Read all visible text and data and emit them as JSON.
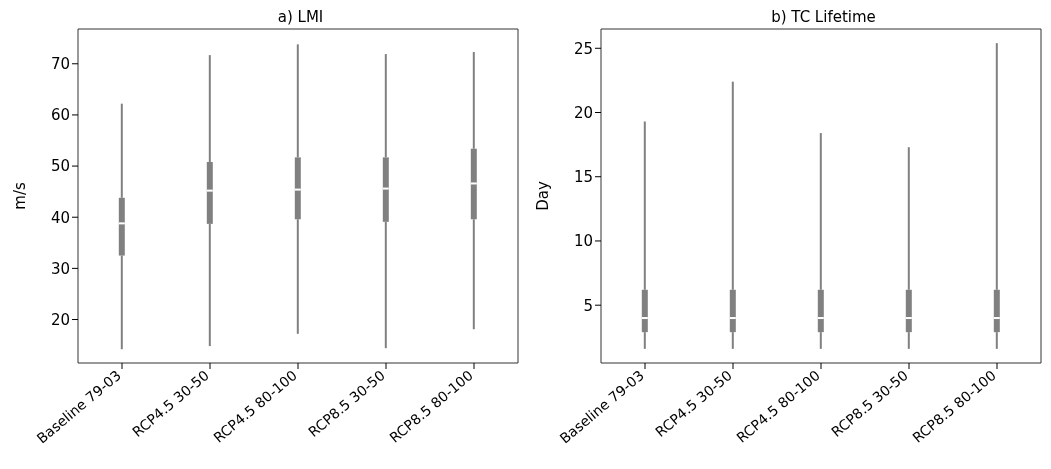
{
  "chart_data": [
    {
      "type": "box",
      "title": "a) LMI",
      "ylabel": "m/s",
      "categories": [
        "Baseline 79-03",
        "RCP4.5 30-50",
        "RCP4.5 80-100",
        "RCP8.5 30-50",
        "RCP8.5 80-100"
      ],
      "color": "#808080",
      "ylim": [
        11.5,
        76.8
      ],
      "yticks": [
        20,
        30,
        40,
        50,
        60,
        70
      ],
      "grid": false,
      "legend": false,
      "boxes": [
        {
          "low": 14.2,
          "q1": 32.5,
          "median": 38.8,
          "q3": 43.8,
          "high": 62.2
        },
        {
          "low": 14.8,
          "q1": 38.7,
          "median": 45.2,
          "q3": 50.8,
          "high": 71.7
        },
        {
          "low": 17.2,
          "q1": 39.6,
          "median": 45.4,
          "q3": 51.7,
          "high": 73.8
        },
        {
          "low": 14.4,
          "q1": 39.1,
          "median": 45.6,
          "q3": 51.7,
          "high": 71.9
        },
        {
          "low": 18.1,
          "q1": 39.6,
          "median": 46.6,
          "q3": 53.4,
          "high": 72.3
        }
      ]
    },
    {
      "type": "box",
      "title": "b) TC Lifetime",
      "ylabel": "Day",
      "categories": [
        "Baseline 79-03",
        "RCP4.5 30-50",
        "RCP4.5 80-100",
        "RCP8.5 30-50",
        "RCP8.5 80-100"
      ],
      "color": "#808080",
      "ylim": [
        0.5,
        26.5
      ],
      "yticks": [
        5,
        10,
        15,
        20,
        25
      ],
      "grid": false,
      "legend": false,
      "boxes": [
        {
          "low": 1.6,
          "q1": 2.9,
          "median": 4.0,
          "q3": 6.2,
          "high": 19.3
        },
        {
          "low": 1.6,
          "q1": 2.9,
          "median": 4.0,
          "q3": 6.2,
          "high": 22.4
        },
        {
          "low": 1.6,
          "q1": 2.9,
          "median": 4.0,
          "q3": 6.2,
          "high": 18.4
        },
        {
          "low": 1.6,
          "q1": 2.9,
          "median": 4.0,
          "q3": 6.2,
          "high": 17.3
        },
        {
          "low": 1.6,
          "q1": 2.9,
          "median": 4.0,
          "q3": 6.2,
          "high": 25.4
        }
      ]
    }
  ]
}
